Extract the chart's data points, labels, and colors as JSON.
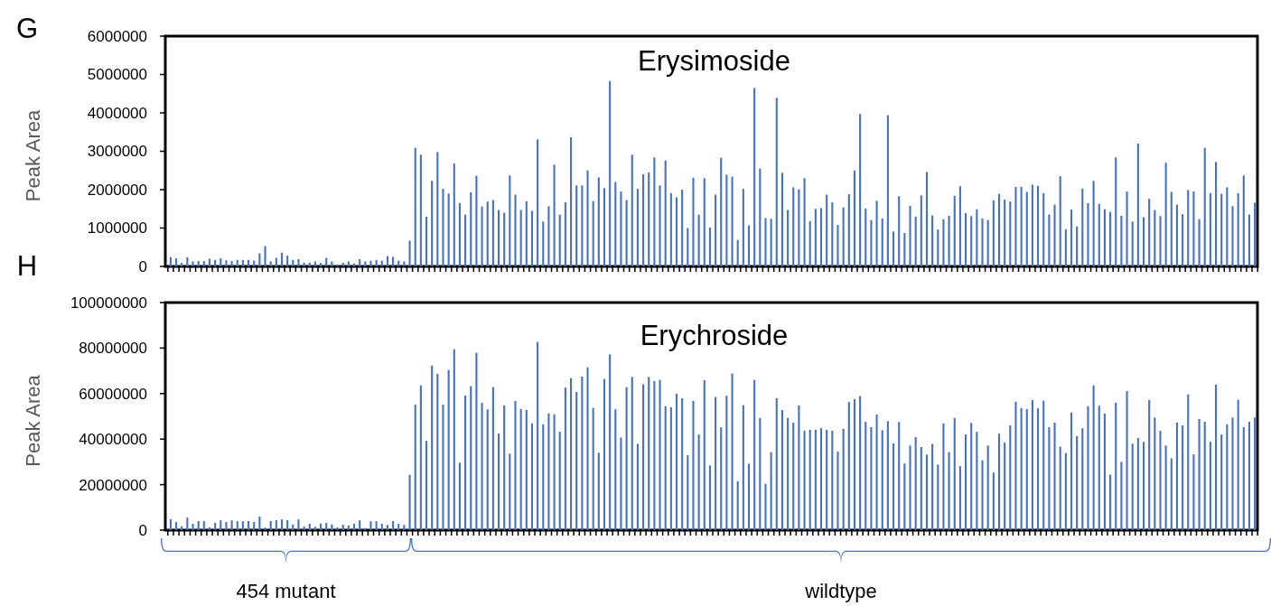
{
  "chart_data": [
    {
      "type": "bar",
      "title": "Erysimoside",
      "ylabel": "Peak Area",
      "color": "#4472c4",
      "tick_labels": "y",
      "grid": false,
      "annotations": [
        "G"
      ],
      "ylim": [
        0,
        6000000
      ],
      "yticks": [
        0,
        1000000,
        2000000,
        3000000,
        4000000,
        5000000,
        6000000
      ],
      "categories": [
        null,
        null,
        null,
        null,
        null,
        null,
        null,
        null,
        null,
        null,
        null,
        null,
        null,
        null,
        null,
        null,
        null,
        null,
        null,
        null,
        null,
        null,
        null,
        null,
        null,
        null,
        null,
        null,
        null,
        null,
        null,
        null,
        null,
        null,
        null,
        null,
        null,
        null,
        null,
        null,
        null,
        null,
        null,
        null,
        null,
        null,
        null,
        null,
        null,
        null,
        null,
        null,
        null,
        null,
        null,
        null,
        null,
        null,
        null,
        null,
        null,
        null,
        null,
        null,
        null,
        null,
        null,
        null,
        null,
        null,
        null,
        null,
        null,
        null,
        null,
        null,
        null,
        null,
        null,
        null,
        null,
        null,
        null,
        null,
        null,
        null,
        null,
        null,
        null,
        null,
        null,
        null,
        null,
        null,
        null,
        null,
        null,
        null,
        null,
        null,
        null,
        null,
        null,
        null,
        null,
        null,
        null,
        null,
        null,
        null,
        null,
        null,
        null,
        null,
        null,
        null,
        null,
        null,
        null,
        null,
        null,
        null,
        null,
        null,
        null,
        null,
        null,
        null,
        null,
        null,
        null,
        null,
        null,
        null,
        null,
        null,
        null,
        null,
        null,
        null,
        null,
        null,
        null,
        null,
        null,
        null,
        null,
        null,
        null,
        null,
        null,
        null,
        null,
        null,
        null,
        null,
        null,
        null,
        null,
        null,
        null,
        null,
        null,
        null,
        null,
        null,
        null,
        null,
        null,
        null,
        null,
        null,
        null,
        null,
        null,
        null,
        null,
        null,
        null,
        null,
        null,
        null,
        null,
        null,
        null,
        null,
        null,
        null,
        null,
        null,
        null,
        null,
        null,
        null,
        null,
        null
      ],
      "values": [
        240000,
        210000,
        90000,
        240000,
        130000,
        140000,
        140000,
        200000,
        170000,
        210000,
        160000,
        140000,
        170000,
        170000,
        170000,
        150000,
        340000,
        530000,
        130000,
        220000,
        360000,
        280000,
        170000,
        190000,
        100000,
        100000,
        130000,
        90000,
        220000,
        130000,
        50000,
        100000,
        130000,
        80000,
        190000,
        130000,
        150000,
        170000,
        150000,
        270000,
        250000,
        150000,
        130000,
        670000,
        3090000,
        2910000,
        1300000,
        2230000,
        2980000,
        2020000,
        1900000,
        2680000,
        1650000,
        1350000,
        1930000,
        2360000,
        1560000,
        1690000,
        1730000,
        1470000,
        1400000,
        2370000,
        1870000,
        1470000,
        1700000,
        1450000,
        3310000,
        1170000,
        1570000,
        2650000,
        1350000,
        1670000,
        3370000,
        2110000,
        2110000,
        2500000,
        1700000,
        2320000,
        2040000,
        4830000,
        2200000,
        1950000,
        1730000,
        2910000,
        2020000,
        2400000,
        2450000,
        2840000,
        2110000,
        2760000,
        1910000,
        1800000,
        2000000,
        1000000,
        2310000,
        1350000,
        2300000,
        1010000,
        1870000,
        2830000,
        2390000,
        2340000,
        690000,
        2020000,
        1070000,
        4650000,
        2550000,
        1260000,
        1240000,
        4390000,
        2440000,
        1470000,
        2060000,
        2010000,
        2300000,
        1180000,
        1500000,
        1520000,
        1870000,
        1670000,
        1080000,
        1540000,
        1880000,
        2500000,
        3970000,
        1510000,
        1210000,
        1710000,
        1250000,
        3940000,
        910000,
        1830000,
        870000,
        1580000,
        1300000,
        1850000,
        2460000,
        1330000,
        960000,
        1230000,
        1320000,
        1840000,
        2090000,
        1390000,
        1310000,
        1490000,
        1250000,
        1210000,
        1720000,
        1890000,
        1740000,
        1690000,
        2070000,
        2070000,
        1940000,
        2130000,
        2100000,
        1910000,
        1350000,
        1610000,
        2350000,
        970000,
        1480000,
        1040000,
        2030000,
        1650000,
        2230000,
        1630000,
        1490000,
        1420000,
        2840000,
        1320000,
        1950000,
        1170000,
        3200000,
        1280000,
        1760000,
        1470000,
        1310000,
        2700000,
        1940000,
        1610000,
        1360000,
        1990000,
        1950000,
        1230000,
        3090000,
        1910000,
        2720000,
        1890000,
        2060000,
        1570000,
        1910000,
        2370000,
        1350000,
        1660000
      ]
    },
    {
      "type": "bar",
      "title": "Erychroside",
      "ylabel": "Peak Area",
      "color": "#4472c4",
      "tick_labels": "y",
      "grid": false,
      "annotations": [
        "H",
        "454 mutant",
        "wildtype"
      ],
      "ylim": [
        0,
        100000000
      ],
      "yticks": [
        0,
        20000000,
        40000000,
        60000000,
        80000000,
        100000000
      ],
      "categories": [
        null,
        null,
        null,
        null,
        null,
        null,
        null,
        null,
        null,
        null,
        null,
        null,
        null,
        null,
        null,
        null,
        null,
        null,
        null,
        null,
        null,
        null,
        null,
        null,
        null,
        null,
        null,
        null,
        null,
        null,
        null,
        null,
        null,
        null,
        null,
        null,
        null,
        null,
        null,
        null,
        null,
        null,
        null,
        null,
        null,
        null,
        null,
        null,
        null,
        null,
        null,
        null,
        null,
        null,
        null,
        null,
        null,
        null,
        null,
        null,
        null,
        null,
        null,
        null,
        null,
        null,
        null,
        null,
        null,
        null,
        null,
        null,
        null,
        null,
        null,
        null,
        null,
        null,
        null,
        null,
        null,
        null,
        null,
        null,
        null,
        null,
        null,
        null,
        null,
        null,
        null,
        null,
        null,
        null,
        null,
        null,
        null,
        null,
        null,
        null,
        null,
        null,
        null,
        null,
        null,
        null,
        null,
        null,
        null,
        null,
        null,
        null,
        null,
        null,
        null,
        null,
        null,
        null,
        null,
        null,
        null,
        null,
        null,
        null,
        null,
        null,
        null,
        null,
        null,
        null,
        null,
        null,
        null,
        null,
        null,
        null,
        null,
        null,
        null,
        null,
        null,
        null,
        null,
        null,
        null,
        null,
        null,
        null,
        null,
        null,
        null,
        null,
        null,
        null,
        null,
        null,
        null,
        null,
        null,
        null,
        null,
        null,
        null,
        null,
        null,
        null,
        null,
        null,
        null,
        null,
        null,
        null,
        null,
        null,
        null,
        null,
        null,
        null,
        null,
        null,
        null,
        null,
        null,
        null,
        null,
        null,
        null,
        null,
        null,
        null,
        null,
        null,
        null,
        null,
        null,
        null
      ],
      "values": [
        4800000,
        3500000,
        1700000,
        5500000,
        2800000,
        4000000,
        4000000,
        1200000,
        3200000,
        4300000,
        3600000,
        4300000,
        3900000,
        3900000,
        4000000,
        3600000,
        6000000,
        1100000,
        4000000,
        4400000,
        4700000,
        4400000,
        2500000,
        4700000,
        1600000,
        2800000,
        1500000,
        2900000,
        3200000,
        2500000,
        1200000,
        2400000,
        2100000,
        2800000,
        4300000,
        900000,
        3900000,
        3900000,
        2800000,
        2300000,
        4000000,
        2800000,
        2300000,
        24300000,
        55200000,
        63600000,
        39200000,
        72300000,
        68700000,
        55200000,
        70400000,
        79500000,
        29600000,
        59200000,
        63300000,
        77900000,
        55900000,
        53100000,
        62900000,
        42400000,
        54800000,
        33600000,
        56800000,
        53200000,
        52800000,
        46900000,
        82700000,
        46500000,
        51300000,
        50900000,
        43200000,
        62700000,
        66800000,
        60700000,
        67500000,
        71500000,
        53700000,
        34000000,
        66400000,
        77200000,
        53100000,
        40700000,
        62800000,
        67300000,
        37900000,
        64100000,
        67300000,
        65500000,
        66000000,
        54500000,
        54000000,
        59900000,
        57900000,
        32900000,
        56800000,
        42000000,
        65900000,
        28400000,
        58500000,
        45200000,
        59100000,
        68800000,
        21500000,
        54900000,
        29200000,
        66000000,
        49300000,
        20400000,
        34300000,
        58000000,
        52800000,
        49300000,
        47300000,
        54800000,
        43700000,
        44100000,
        44100000,
        44800000,
        44100000,
        43700000,
        34500000,
        44500000,
        56300000,
        57600000,
        58900000,
        47600000,
        45300000,
        50800000,
        43900000,
        47900000,
        38100000,
        47500000,
        29300000,
        37200000,
        40900000,
        36500000,
        33200000,
        37900000,
        28800000,
        46900000,
        34300000,
        49300000,
        28100000,
        42000000,
        47100000,
        43200000,
        30700000,
        37200000,
        25300000,
        42400000,
        38400000,
        46000000,
        56400000,
        53700000,
        53200000,
        57200000,
        53500000,
        56900000,
        45200000,
        47300000,
        36700000,
        33900000,
        51700000,
        41300000,
        44800000,
        54500000,
        63600000,
        54700000,
        51200000,
        24400000,
        56000000,
        30000000,
        61100000,
        38000000,
        40500000,
        38800000,
        57200000,
        49500000,
        43600000,
        37200000,
        31600000,
        47300000,
        46000000,
        59600000,
        33300000,
        48800000,
        47600000,
        38800000,
        63900000,
        42000000,
        46500000,
        49500000,
        57300000,
        45200000,
        47600000,
        49500000
      ]
    }
  ]
}
